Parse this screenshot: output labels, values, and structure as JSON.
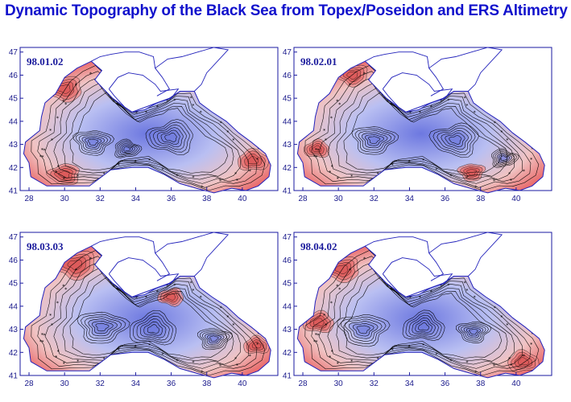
{
  "title": "Dynamic Topography of the Black Sea from Topex/Poseidon and ERS Altimetry",
  "map_defaults": {
    "x_ticks": [
      "28",
      "30",
      "32",
      "34",
      "36",
      "38",
      "40"
    ],
    "y_ticks": [
      "41",
      "42",
      "43",
      "44",
      "45",
      "46",
      "47"
    ],
    "x_range": [
      27.5,
      42
    ],
    "y_range": [
      41,
      47.2
    ]
  },
  "panels": [
    {
      "date": "98.01.02"
    },
    {
      "date": "98.02.01"
    },
    {
      "date": "98.03.03"
    },
    {
      "date": "98.04.02"
    }
  ],
  "colors": {
    "title": "#1111cc",
    "frame": "#1a1aa0",
    "coast": "#2222bb",
    "high": "#e85a5a",
    "low": "#7a84e6",
    "contour": "#000000"
  }
}
